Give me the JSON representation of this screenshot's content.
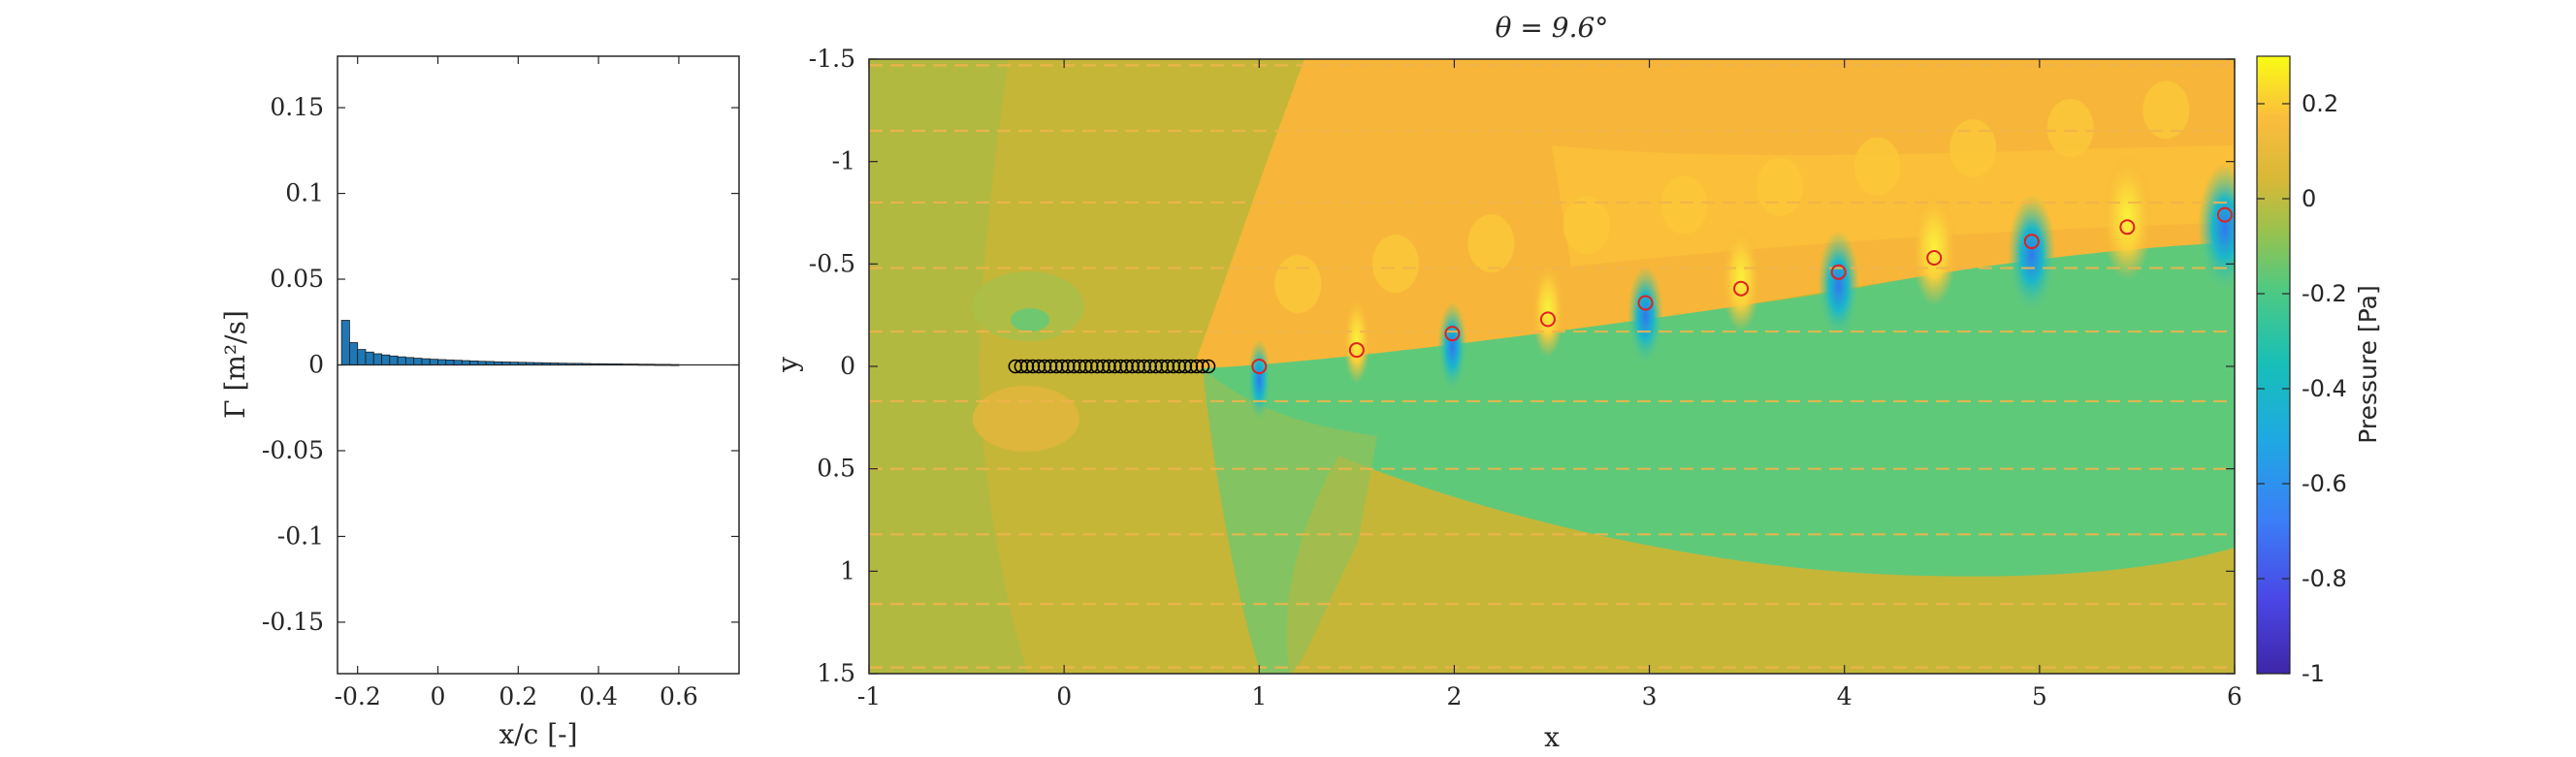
{
  "chart_data": [
    {
      "type": "bar",
      "xlabel": "x/c [-]",
      "ylabel": "Γ [m²/s]",
      "xlim": [
        -0.25,
        0.75
      ],
      "ylim": [
        -0.18,
        0.18
      ],
      "xticks": [
        "-0.2",
        "0",
        "0.2",
        "0.4",
        "0.6"
      ],
      "yticks": [
        "0.15",
        "0.1",
        "0.05",
        "0",
        "-0.05",
        "-0.1",
        "-0.15"
      ],
      "bar_width": 0.02,
      "color": "#1f77b4",
      "x": [
        -0.24,
        -0.22,
        -0.2,
        -0.18,
        -0.16,
        -0.14,
        -0.12,
        -0.1,
        -0.08,
        -0.06,
        -0.04,
        -0.02,
        0.0,
        0.02,
        0.04,
        0.06,
        0.08,
        0.1,
        0.12,
        0.14,
        0.16,
        0.18,
        0.2,
        0.22,
        0.24,
        0.26,
        0.28,
        0.3,
        0.32,
        0.34,
        0.36,
        0.38,
        0.4,
        0.42,
        0.44,
        0.46,
        0.48,
        0.5,
        0.52,
        0.54,
        0.56,
        0.58
      ],
      "values": [
        0.026,
        0.013,
        0.009,
        0.0075,
        0.0065,
        0.0058,
        0.0052,
        0.0047,
        0.0043,
        0.0039,
        0.0036,
        0.0033,
        0.0031,
        0.0029,
        0.0027,
        0.0025,
        0.0023,
        0.0021,
        0.002,
        0.0018,
        0.0017,
        0.0016,
        0.0015,
        0.0014,
        0.0013,
        0.0012,
        0.0011,
        0.001,
        0.0009,
        0.0009,
        0.0008,
        0.0007,
        0.0007,
        0.0006,
        0.0006,
        0.0005,
        0.0005,
        0.0004,
        0.0004,
        0.0003,
        0.0003,
        0.0002
      ]
    },
    {
      "type": "heatmap",
      "title": "θ = 9.6°",
      "xlabel": "x",
      "ylabel": "y",
      "xlim": [
        -1,
        6
      ],
      "ylim": [
        -1.5,
        1.5
      ],
      "y_reversed": true,
      "xticks": [
        "-1",
        "0",
        "1",
        "2",
        "3",
        "4",
        "5",
        "6"
      ],
      "yticks": [
        "-1.5",
        "-1",
        "-0.5",
        "0",
        "0.5",
        "1",
        "1.5"
      ],
      "colorbar": {
        "label": "Pressure [Pa]",
        "range": [
          -1,
          0.3
        ],
        "ticks": [
          "0.2",
          "0",
          "-0.2",
          "-0.4",
          "-0.6",
          "-0.8",
          "-1"
        ]
      },
      "colors": {
        "background_mid": "#c5b638",
        "positive": "#f7b639",
        "upper_light": "#fbc938",
        "negative_zone": "#5fc97a",
        "neutral_green": "#a8ba47",
        "dashed_line": "#f0b44c"
      },
      "panel_points": {
        "x": [
          -0.25,
          -0.22,
          -0.19,
          -0.16,
          -0.13,
          -0.1,
          -0.07,
          -0.04,
          -0.01,
          0.02,
          0.05,
          0.08,
          0.11,
          0.14,
          0.17,
          0.2,
          0.23,
          0.26,
          0.29,
          0.32,
          0.35,
          0.38,
          0.41,
          0.44,
          0.47,
          0.5,
          0.53,
          0.56,
          0.59,
          0.62,
          0.65,
          0.68,
          0.71,
          0.74
        ],
        "y": 0,
        "color": "#000000"
      },
      "wake_vortices": {
        "x": [
          1.0,
          1.5,
          1.99,
          2.48,
          2.98,
          3.47,
          3.97,
          4.46,
          4.96,
          5.45,
          5.95
        ],
        "y": [
          0.0,
          -0.08,
          -0.16,
          -0.23,
          -0.31,
          -0.38,
          -0.46,
          -0.53,
          -0.61,
          -0.68,
          -0.74
        ],
        "color": "#e02020"
      },
      "dashed_lines_y": [
        -1.47,
        -1.15,
        -0.8,
        -0.48,
        -0.17,
        0.17,
        0.5,
        0.82,
        1.16,
        1.47
      ]
    }
  ]
}
